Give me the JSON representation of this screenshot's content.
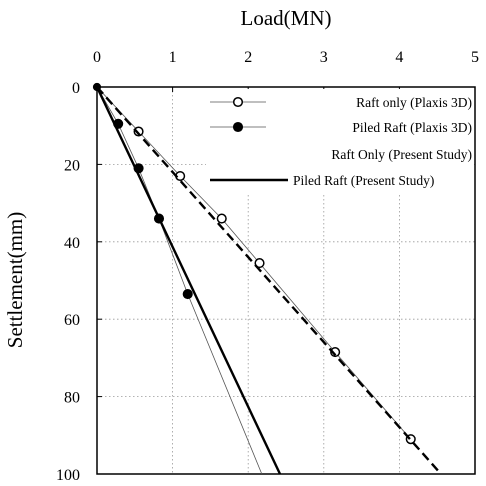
{
  "chart_data": {
    "type": "line",
    "xlabel": "Load(MN)",
    "ylabel": "Settlement(mm)",
    "xlim": [
      0,
      5
    ],
    "ylim": [
      0,
      100
    ],
    "x_axis_position": "top",
    "y_axis_inverted": true,
    "xticks": [
      "0",
      "1",
      "2",
      "3",
      "4",
      "5"
    ],
    "yticks": [
      "0",
      "20",
      "40",
      "60",
      "80",
      "100"
    ],
    "grid": "dotted",
    "legend": "top-right",
    "series": [
      {
        "name": "Raft only (Plaxis 3D)",
        "style": "thin-line-open-circle",
        "x": [
          0,
          0.55,
          1.1,
          1.65,
          2.15,
          3.15,
          4.15
        ],
        "y": [
          0,
          11.5,
          23,
          34,
          45.5,
          68.5,
          91
        ]
      },
      {
        "name": "Piled Raft (Plaxis 3D)",
        "style": "thin-line-filled-circle",
        "x": [
          0,
          0.28,
          0.55,
          0.82,
          1.2,
          2.18
        ],
        "y": [
          0,
          9.5,
          21,
          34,
          53.5,
          100
        ]
      },
      {
        "name": "Raft Only (Present Study)",
        "style": "dashed-thick",
        "x": [
          0,
          4.55
        ],
        "y": [
          0,
          100
        ]
      },
      {
        "name": "Piled Raft (Present Study)",
        "style": "solid-thick",
        "x": [
          0,
          2.42
        ],
        "y": [
          0,
          100
        ]
      }
    ]
  }
}
